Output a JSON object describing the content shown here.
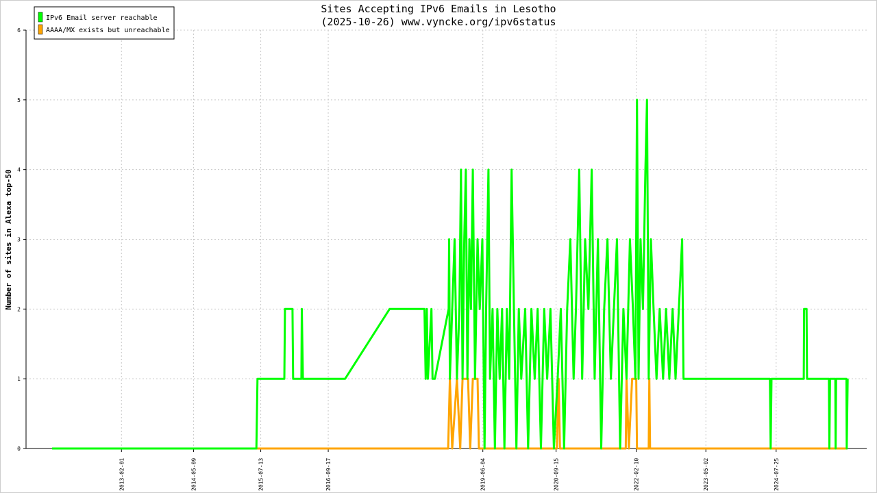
{
  "chart_data": {
    "type": "line",
    "title": "Sites Accepting IPv6 Emails in Lesotho",
    "subtitle": "(2025-10-26) www.vyncke.org/ipv6status",
    "y_label": "Number of sites in Alexa top-50",
    "xlim": [
      "2011-06-01",
      "2026-02-25"
    ],
    "xticks": [
      "2013-02-01",
      "2014-05-09",
      "2015-07-13",
      "2016-09-17",
      "2019-06-04",
      "2020-09-15",
      "2022-02-10",
      "2023-05-02",
      "2024-07-25"
    ],
    "ylim": [
      0,
      6
    ],
    "yticks": [
      0,
      1,
      2,
      3,
      4,
      5,
      6
    ],
    "grid": true,
    "legend": "top-left",
    "series": [
      {
        "name": "IPv6 Email server reachable",
        "color": "#00ff00",
        "x": [
          "2011-11-15",
          "2015-06-15",
          "2015-06-22",
          "2015-12-11",
          "2015-12-15",
          "2016-02-01",
          "2016-02-05",
          "2016-03-29",
          "2016-04-01",
          "2016-04-08",
          "2017-01-03",
          "2017-10-15",
          "2018-05-26",
          "2018-06-03",
          "2018-06-10",
          "2018-06-17",
          "2018-07-10",
          "2018-07-17",
          "2018-08-01",
          "2018-10-28",
          "2018-10-31",
          "2018-11-05",
          "2018-11-20",
          "2018-12-05",
          "2018-12-20",
          "2019-01-05",
          "2019-01-15",
          "2019-01-25",
          "2019-02-05",
          "2019-02-15",
          "2019-02-25",
          "2019-03-10",
          "2019-03-20",
          "2019-04-01",
          "2019-04-15",
          "2019-05-01",
          "2019-05-15",
          "2019-06-01",
          "2019-06-15",
          "2019-06-25",
          "2019-07-10",
          "2019-07-20",
          "2019-08-05",
          "2019-08-20",
          "2019-09-05",
          "2019-09-20",
          "2019-10-05",
          "2019-10-20",
          "2019-11-05",
          "2019-11-20",
          "2019-12-05",
          "2019-12-20",
          "2020-01-05",
          "2020-01-20",
          "2020-02-05",
          "2020-03-01",
          "2020-03-20",
          "2020-04-10",
          "2020-05-01",
          "2020-05-20",
          "2020-06-10",
          "2020-07-01",
          "2020-07-20",
          "2020-08-10",
          "2020-09-01",
          "2020-09-25",
          "2020-10-15",
          "2020-11-05",
          "2020-11-25",
          "2020-12-15",
          "2021-01-05",
          "2021-01-20",
          "2021-02-10",
          "2021-03-01",
          "2021-03-20",
          "2021-04-10",
          "2021-05-01",
          "2021-05-20",
          "2021-06-10",
          "2021-07-01",
          "2021-07-20",
          "2021-08-10",
          "2021-09-01",
          "2021-09-20",
          "2021-10-10",
          "2021-10-30",
          "2021-11-20",
          "2021-12-10",
          "2022-01-01",
          "2022-01-20",
          "2022-02-05",
          "2022-02-15",
          "2022-02-25",
          "2022-03-10",
          "2022-03-25",
          "2022-04-10",
          "2022-04-20",
          "2022-05-01",
          "2022-05-15",
          "2022-06-01",
          "2022-06-20",
          "2022-07-10",
          "2022-08-01",
          "2022-08-20",
          "2022-09-10",
          "2022-10-01",
          "2022-10-20",
          "2022-11-10",
          "2022-12-01",
          "2022-12-10",
          "2022-12-20",
          "2024-06-15",
          "2024-06-20",
          "2024-06-25",
          "2025-01-18",
          "2025-01-20",
          "2025-02-05",
          "2025-02-08",
          "2025-06-28",
          "2025-07-01",
          "2025-07-05",
          "2025-08-08",
          "2025-08-10",
          "2025-08-13",
          "2025-10-18",
          "2025-10-20",
          "2025-10-26"
        ],
        "values": [
          0,
          0,
          1,
          1,
          2,
          2,
          1,
          1,
          2,
          1,
          1,
          2,
          2,
          1,
          2,
          1,
          2,
          1,
          1,
          2,
          3,
          1,
          2,
          3,
          1,
          2,
          4,
          1,
          3,
          4,
          1,
          3,
          2,
          4,
          1,
          3,
          2,
          3,
          0,
          2,
          4,
          1,
          2,
          0,
          2,
          1,
          2,
          0,
          2,
          1,
          4,
          2,
          0,
          2,
          1,
          2,
          0,
          2,
          1,
          2,
          0,
          2,
          1,
          2,
          0,
          1,
          2,
          0,
          2,
          3,
          1,
          2,
          4,
          1,
          3,
          2,
          4,
          1,
          3,
          0,
          2,
          3,
          1,
          2,
          3,
          0,
          2,
          1,
          3,
          2,
          1,
          5,
          1,
          3,
          2,
          4,
          5,
          1,
          3,
          2,
          1,
          2,
          1,
          2,
          1,
          2,
          1,
          2,
          3,
          1,
          1,
          1,
          0,
          1,
          1,
          2,
          2,
          1,
          1,
          0,
          1,
          1,
          0,
          1,
          1,
          0,
          1
        ]
      },
      {
        "name": "AAAA/MX exists but unreachable",
        "color": "#ffa500",
        "x": [
          "2011-11-15",
          "2018-10-25",
          "2018-11-05",
          "2018-11-20",
          "2018-12-20",
          "2019-01-10",
          "2019-01-25",
          "2019-03-01",
          "2019-03-15",
          "2019-04-01",
          "2019-05-01",
          "2019-05-10",
          "2020-09-20",
          "2020-10-01",
          "2020-10-10",
          "2021-12-05",
          "2021-12-10",
          "2021-12-25",
          "2022-01-15",
          "2022-02-10",
          "2022-02-15",
          "2022-05-01",
          "2022-05-05",
          "2022-05-10",
          "2025-10-26"
        ],
        "values": [
          0,
          0,
          1,
          0,
          1,
          0,
          1,
          1,
          0,
          1,
          1,
          0,
          0,
          1,
          0,
          0,
          1,
          0,
          1,
          1,
          0,
          0,
          1,
          0,
          0
        ]
      }
    ]
  }
}
